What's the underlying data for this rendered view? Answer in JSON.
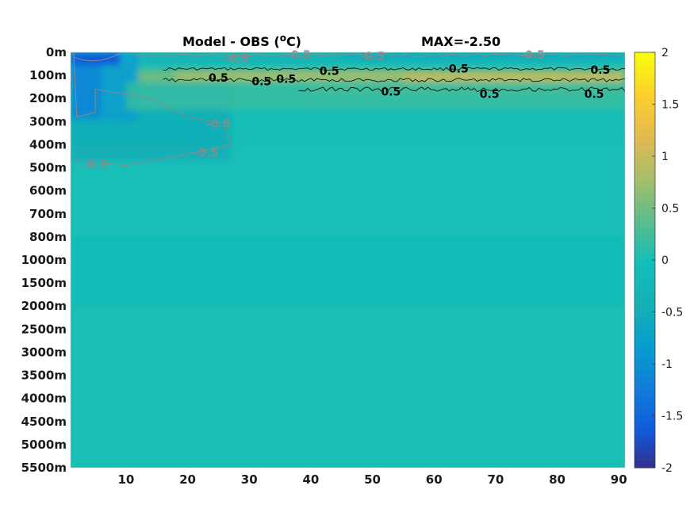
{
  "chart_data": {
    "type": "heatmap",
    "title": "Model - OBS (",
    "title_unit": "o",
    "title_unit_suffix": "C)",
    "title_right": "MAX=-2.50",
    "x_ticks": [
      10,
      20,
      30,
      40,
      50,
      60,
      70,
      80,
      90
    ],
    "xlim": [
      1,
      91
    ],
    "y_tick_labels": [
      "0m",
      "100m",
      "200m",
      "300m",
      "400m",
      "500m",
      "600m",
      "700m",
      "800m",
      "1000m",
      "1500m",
      "2000m",
      "2500m",
      "3000m",
      "3500m",
      "4000m",
      "4500m",
      "5000m",
      "5500m"
    ],
    "colorbar": {
      "ticks": [
        "2",
        "1.5",
        "1",
        "0.5",
        "0",
        "-0.5",
        "-1",
        "-1.5",
        "-2"
      ],
      "range": [
        -2,
        2
      ],
      "colormap": "parula"
    },
    "contour_labels": [
      {
        "text": "0.5",
        "level": 0.5,
        "x": 25,
        "depth_index": 1.1
      },
      {
        "text": "0.5",
        "level": 0.5,
        "x": 32,
        "depth_index": 1.25
      },
      {
        "text": "0.5",
        "level": 0.5,
        "x": 36,
        "depth_index": 1.15
      },
      {
        "text": "0.5",
        "level": 0.5,
        "x": 43,
        "depth_index": 0.8
      },
      {
        "text": "0.5",
        "level": 0.5,
        "x": 53,
        "depth_index": 1.7
      },
      {
        "text": "0.5",
        "level": 0.5,
        "x": 64,
        "depth_index": 0.7
      },
      {
        "text": "0.5",
        "level": 0.5,
        "x": 69,
        "depth_index": 1.8
      },
      {
        "text": "0.5",
        "level": 0.5,
        "x": 87,
        "depth_index": 0.75
      },
      {
        "text": "0.5",
        "level": 0.5,
        "x": 86,
        "depth_index": 1.8
      },
      {
        "text": "-0.5",
        "level": -0.5,
        "x": 28,
        "depth_index": 0.25
      },
      {
        "text": "-0.5",
        "level": -0.5,
        "x": 38,
        "depth_index": 0.1
      },
      {
        "text": "-0.5",
        "level": -0.5,
        "x": 50,
        "depth_index": 0.15
      },
      {
        "text": "-0.5",
        "level": -0.5,
        "x": 76,
        "depth_index": 0.1
      },
      {
        "text": "-0.5",
        "level": -0.5,
        "x": 25,
        "depth_index": 3.1
      },
      {
        "text": "-0.5",
        "level": -0.5,
        "x": 5,
        "depth_index": 4.85
      },
      {
        "text": "-0.5",
        "level": -0.5,
        "x": 23,
        "depth_index": 4.35
      }
    ],
    "colors": {
      "contour_positive": "#000000",
      "contour_negative": "#8a8a8a"
    }
  }
}
